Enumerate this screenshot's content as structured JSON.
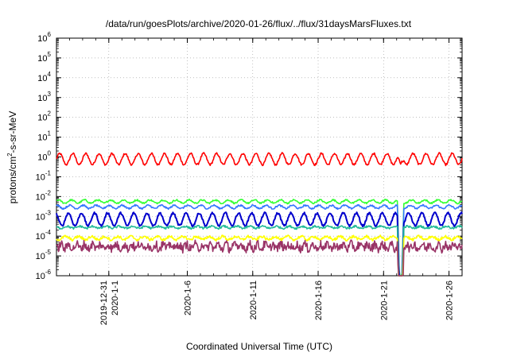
{
  "chart_data": {
    "type": "line",
    "title": "/data/run/goesPlots/archive/2020-01-26/flux/../flux/31daysMarsFluxes.txt",
    "xlabel": "Coordinated Universal Time (UTC)",
    "ylabel_main": "protons/cm",
    "ylabel_sup": "2",
    "ylabel_tail": "-s-sr-MeV",
    "y_scale": "log",
    "ylim": [
      1e-06,
      1000000.0
    ],
    "y_ticks": [
      {
        "base": "10",
        "exp": "-6"
      },
      {
        "base": "10",
        "exp": "-5"
      },
      {
        "base": "10",
        "exp": "-4"
      },
      {
        "base": "10",
        "exp": "-3"
      },
      {
        "base": "10",
        "exp": "-2"
      },
      {
        "base": "10",
        "exp": "-1"
      },
      {
        "base": "10",
        "exp": "0"
      },
      {
        "base": "10",
        "exp": "1"
      },
      {
        "base": "10",
        "exp": "2"
      },
      {
        "base": "10",
        "exp": "3"
      },
      {
        "base": "10",
        "exp": "4"
      },
      {
        "base": "10",
        "exp": "5"
      },
      {
        "base": "10",
        "exp": "6"
      }
    ],
    "xlim": [
      "2019-12-27",
      "2020-01-27"
    ],
    "x_ticks": [
      {
        "lines": [
          "2019-12-31",
          "2020-1-1"
        ],
        "day": 4.0
      },
      {
        "lines": [
          "2020-1-6"
        ],
        "day": 10.0
      },
      {
        "lines": [
          "2020-1-11"
        ],
        "day": 15.0
      },
      {
        "lines": [
          "2020-1-16"
        ],
        "day": 20.0
      },
      {
        "lines": [
          "2020-1-21"
        ],
        "day": 25.0
      },
      {
        "lines": [
          "2020-1-26"
        ],
        "day": 30.0
      }
    ],
    "grid": true,
    "series": [
      {
        "color": "#ff0000",
        "center": 0.78,
        "amp": 0.28,
        "period": 1.0,
        "noise": 0.05,
        "dip": -0.5
      },
      {
        "color": "#33ff33",
        "center": 0.0056,
        "amp": 0.08,
        "period": 1.0,
        "noise": 0.04,
        "dip": -6
      },
      {
        "color": "#3377ff",
        "center": 0.003,
        "amp": 0.08,
        "period": 1.0,
        "noise": 0.04,
        "dip": -6
      },
      {
        "color": "#0000cc",
        "center": 0.0007,
        "amp": 0.32,
        "period": 1.0,
        "noise": 0.05,
        "dip": -6
      },
      {
        "color": "#22bb99",
        "center": 0.00028,
        "amp": 0.05,
        "period": 1.0,
        "noise": 0.05,
        "dip": -6
      },
      {
        "color": "#ffff00",
        "center": 8e-05,
        "amp": 0.08,
        "period": 1.0,
        "noise": 0.07,
        "dip": -6
      },
      {
        "color": "#993366",
        "center": 3e-05,
        "amp": 0.12,
        "period": 0.6,
        "noise": 0.22,
        "dip": -6
      }
    ]
  }
}
